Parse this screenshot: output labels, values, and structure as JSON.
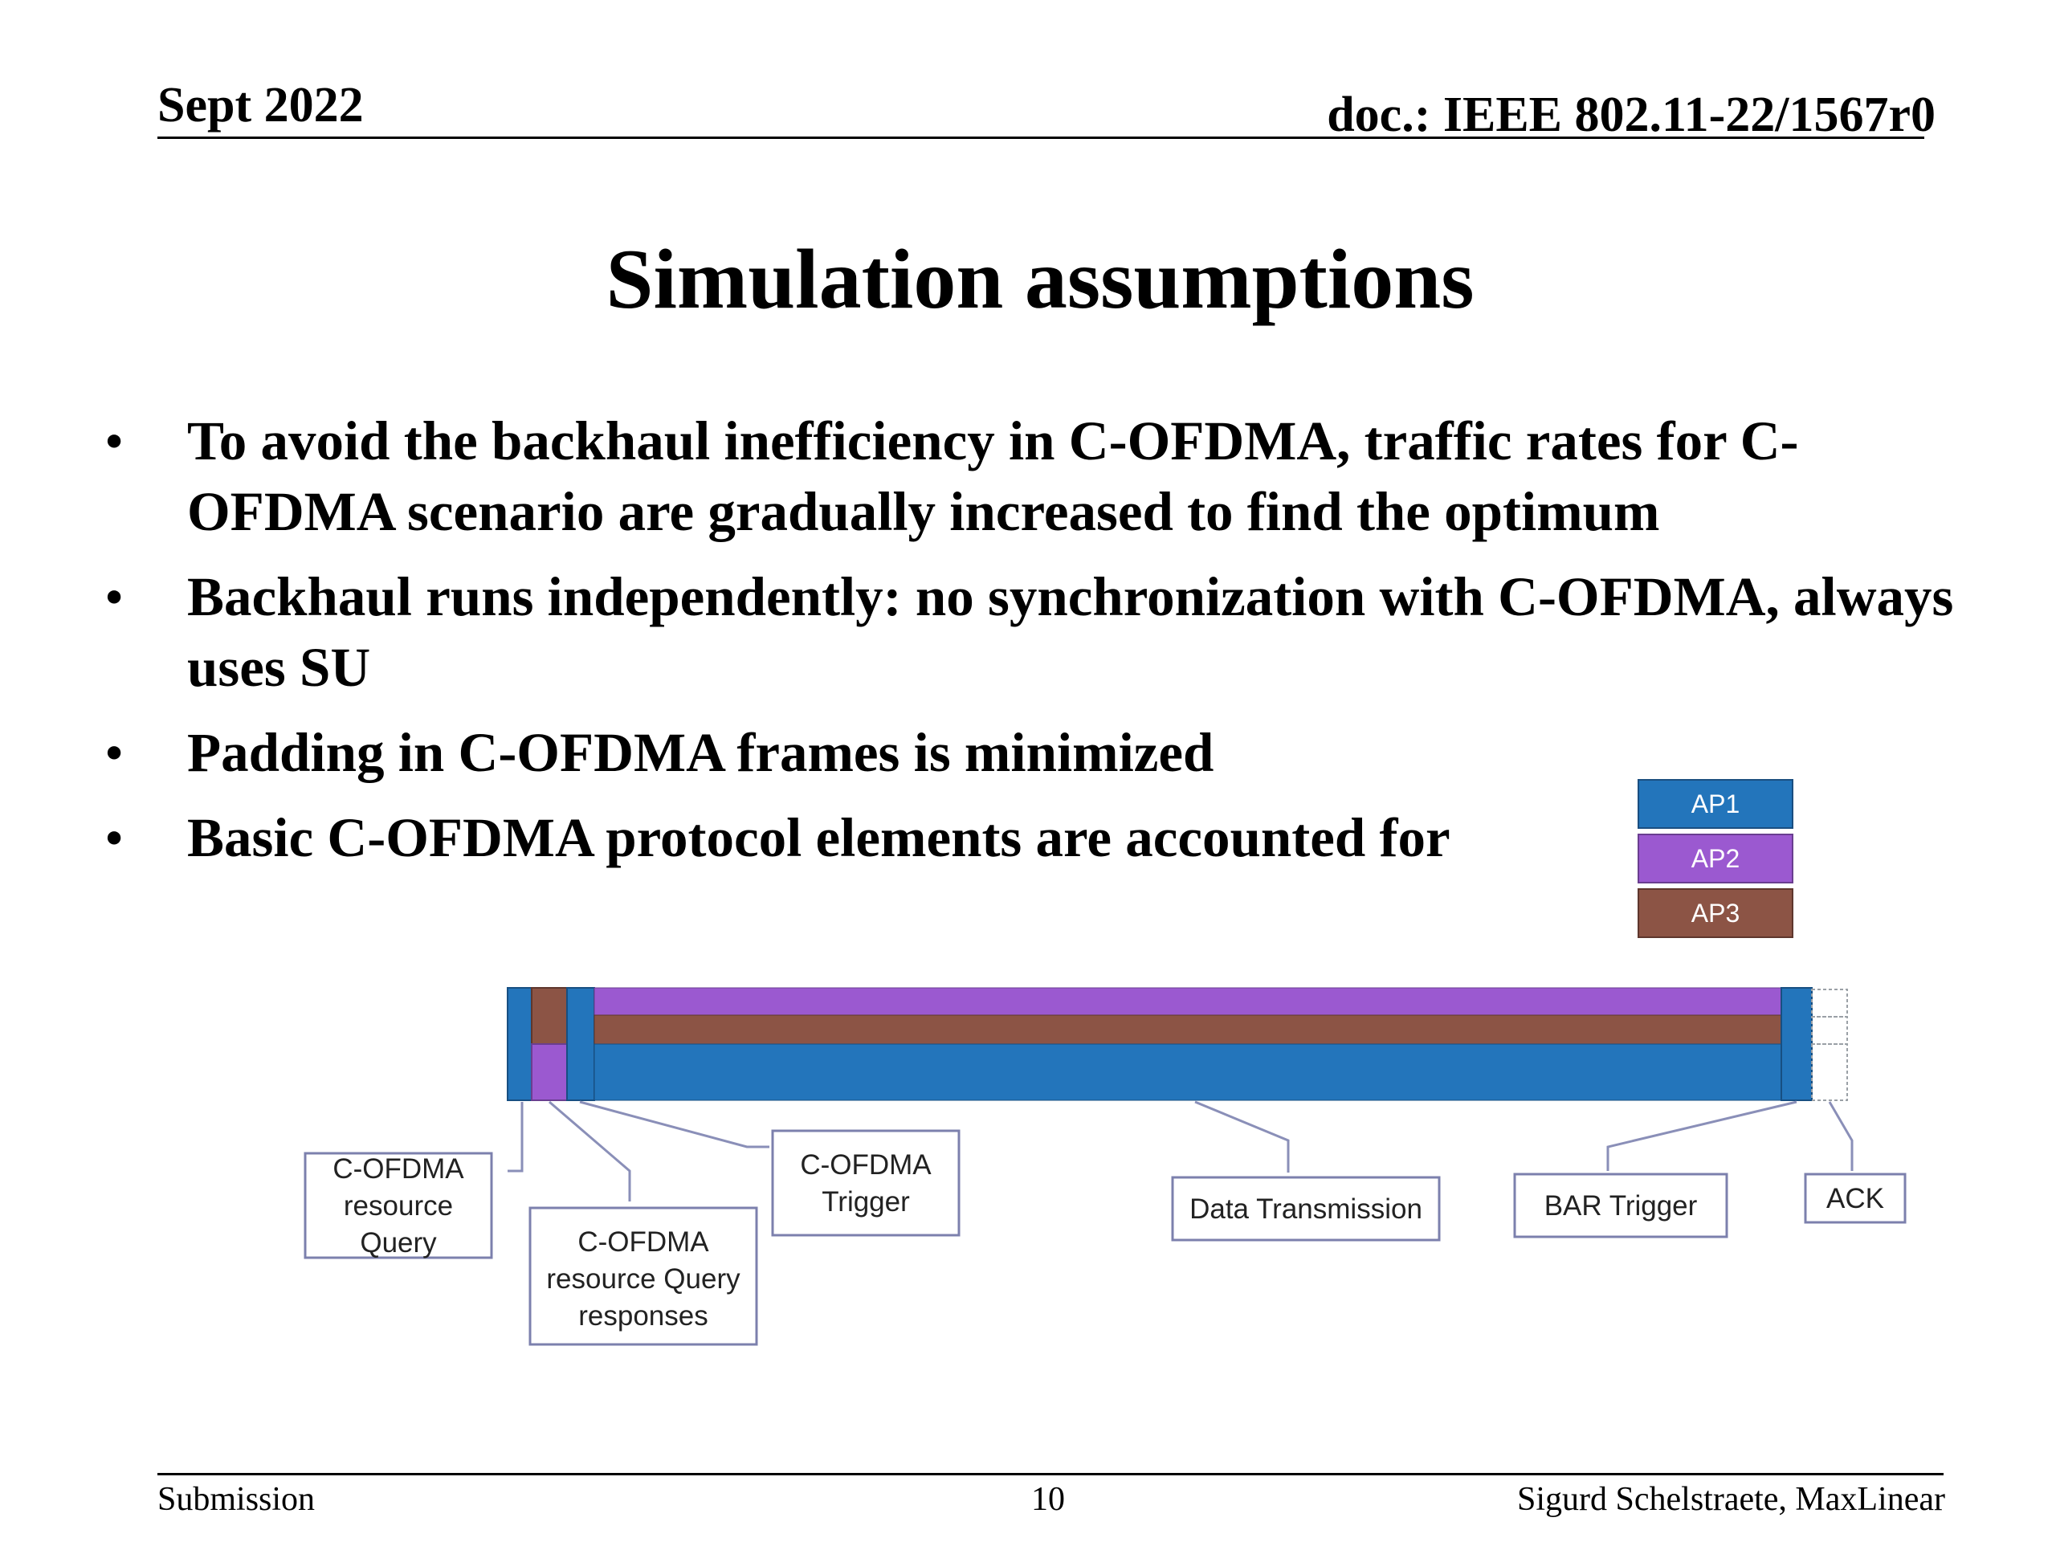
{
  "header": {
    "date": "Sept 2022",
    "doc": "doc.: IEEE 802.11-22/1567r0"
  },
  "title": "Simulation assumptions",
  "bullets": [
    "To avoid the backhaul inefficiency in C-OFDMA, traffic rates for C-OFDMA scenario are gradually increased to find the optimum",
    "Backhaul runs independently: no synchronization with C-OFDMA, always uses SU",
    "Padding in C-OFDMA frames is minimized",
    "Basic C-OFDMA protocol elements are accounted for"
  ],
  "legend": [
    {
      "label": "AP1",
      "color": "#2375bb"
    },
    {
      "label": "AP2",
      "color": "#9b59d0"
    },
    {
      "label": "AP3",
      "color": "#8c5445"
    }
  ],
  "diagram_labels": {
    "query": [
      "C-OFDMA",
      "resource",
      "Query"
    ],
    "responses": [
      "C-OFDMA",
      "resource Query",
      "responses"
    ],
    "trigger": [
      "C-OFDMA",
      "Trigger"
    ],
    "data": "Data Transmission",
    "bar": "BAR Trigger",
    "ack": "ACK"
  },
  "footer": {
    "left": "Submission",
    "page": "10",
    "author": "Sigurd Schelstraete, MaxLinear"
  }
}
